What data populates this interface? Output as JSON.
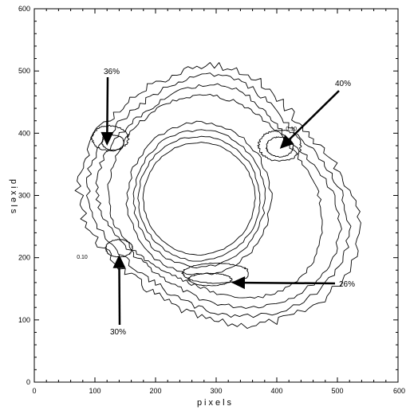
{
  "chart_data": {
    "type": "contour",
    "title": "",
    "xlabel": "pixels",
    "ylabel": "pixels",
    "xlim": [
      0,
      600
    ],
    "ylim": [
      0,
      600
    ],
    "x_ticks": [
      "0",
      "100",
      "200",
      "300",
      "400",
      "500",
      "600"
    ],
    "y_ticks": [
      "0",
      "100",
      "200",
      "300",
      "400",
      "500",
      "600"
    ],
    "grid": false,
    "contour_level_labels": [
      "0.10",
      "0.10"
    ],
    "annotations": [
      {
        "label": "36%",
        "x": 120,
        "y": 380
      },
      {
        "label": "40%",
        "x": 405,
        "y": 375
      },
      {
        "label": "30%",
        "x": 140,
        "y": 205
      },
      {
        "label": "26%",
        "x": 325,
        "y": 160
      }
    ]
  }
}
